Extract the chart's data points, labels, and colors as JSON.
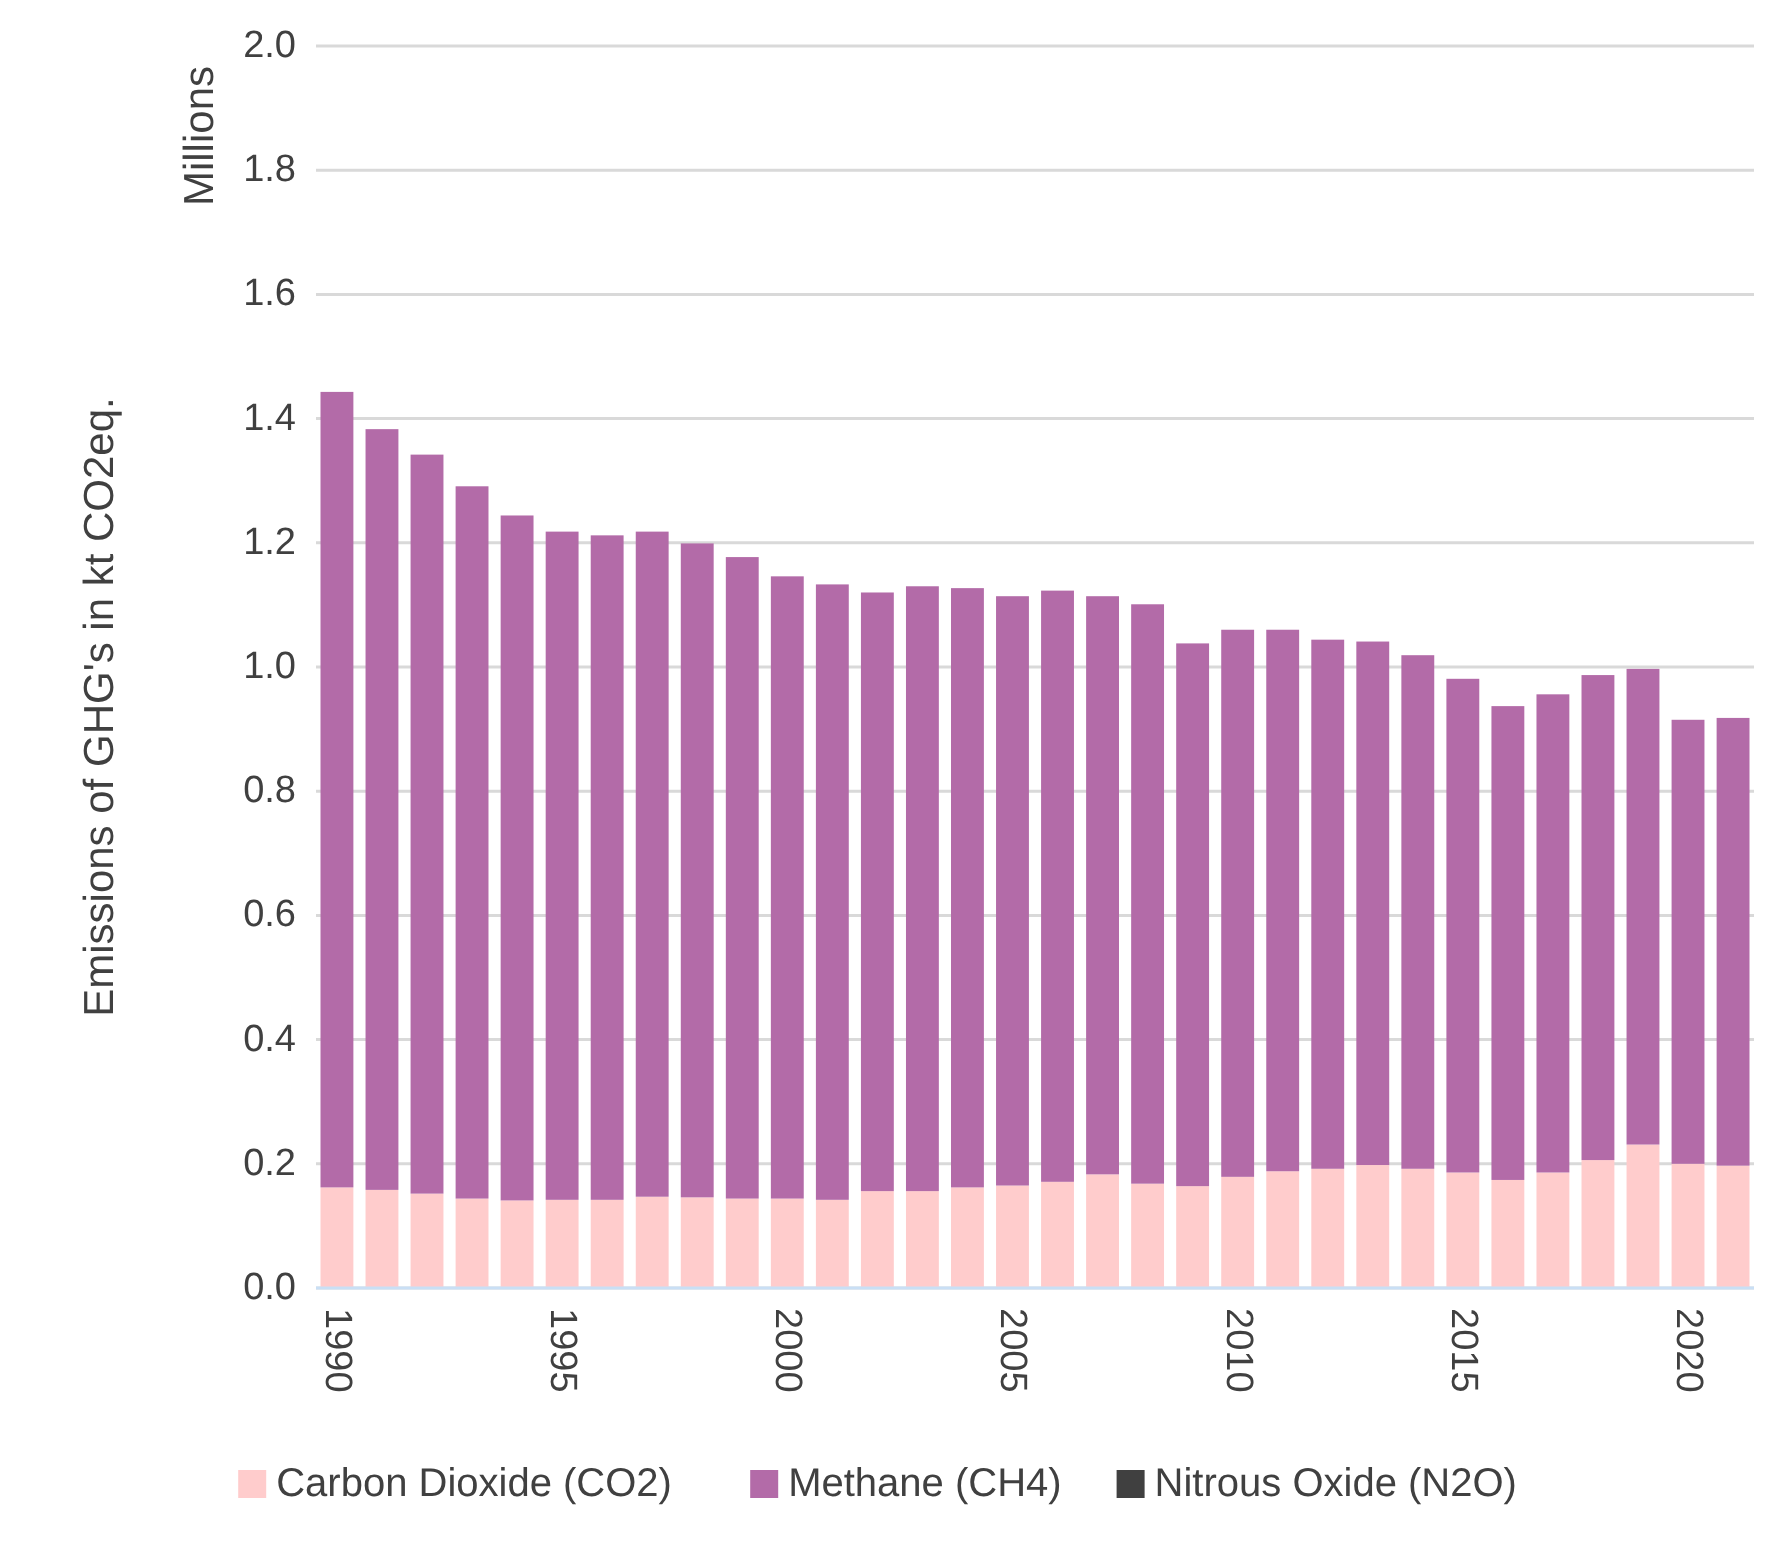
{
  "chart_data": {
    "type": "bar",
    "stacked": true,
    "ylabel": "Emissions of GHG's in kt CO2eq.",
    "annotations": [
      "Millions"
    ],
    "categories": [
      "1990",
      null,
      null,
      null,
      null,
      "1995",
      null,
      null,
      null,
      null,
      "2000",
      null,
      null,
      null,
      null,
      "2005",
      null,
      null,
      null,
      null,
      "2010",
      null,
      null,
      null,
      null,
      "2015",
      null,
      null,
      null,
      null,
      "2020",
      null
    ],
    "series": [
      {
        "name": "Carbon Dioxide (CO2)",
        "color": "#ffcccc",
        "values": [
          0.162,
          0.158,
          0.152,
          0.144,
          0.141,
          0.142,
          0.142,
          0.147,
          0.146,
          0.144,
          0.144,
          0.142,
          0.156,
          0.156,
          0.162,
          0.165,
          0.171,
          0.183,
          0.168,
          0.164,
          0.179,
          0.188,
          0.192,
          0.198,
          0.192,
          0.186,
          0.174,
          0.186,
          0.206,
          0.231,
          0.2,
          0.197
        ]
      },
      {
        "name": "Methane (CH4)",
        "color": "#b36ba8",
        "values": [
          1.281,
          1.225,
          1.19,
          1.147,
          1.103,
          1.076,
          1.07,
          1.071,
          1.053,
          1.033,
          1.002,
          0.991,
          0.964,
          0.974,
          0.965,
          0.949,
          0.952,
          0.931,
          0.933,
          0.874,
          0.881,
          0.872,
          0.852,
          0.843,
          0.827,
          0.795,
          0.763,
          0.77,
          0.781,
          0.766,
          0.715,
          0.721
        ]
      },
      {
        "name": "Nitrous Oxide (N2O)",
        "color": "#404040",
        "values": [
          0,
          0,
          0,
          0,
          0,
          0,
          0,
          0,
          0,
          0,
          0,
          0,
          0,
          0,
          0,
          0,
          0,
          0,
          0,
          0,
          0,
          0,
          0,
          0,
          0,
          0,
          0,
          0,
          0,
          0,
          0,
          0
        ]
      }
    ],
    "ylim": [
      0,
      2
    ],
    "yticks": [
      {
        "value": 0,
        "label": "0.0"
      },
      {
        "value": 0.2,
        "label": "0.2"
      },
      {
        "value": 0.4,
        "label": "0.4"
      },
      {
        "value": 0.6,
        "label": "0.6"
      },
      {
        "value": 0.8,
        "label": "0.8"
      },
      {
        "value": 1,
        "label": "1.0"
      },
      {
        "value": 1.2,
        "label": "1.2"
      },
      {
        "value": 1.4,
        "label": "1.4"
      },
      {
        "value": 1.6,
        "label": "1.6"
      },
      {
        "value": 1.8,
        "label": "1.8"
      },
      {
        "value": 2,
        "label": "2.0"
      }
    ],
    "grid": "y",
    "legend": "bottom"
  }
}
